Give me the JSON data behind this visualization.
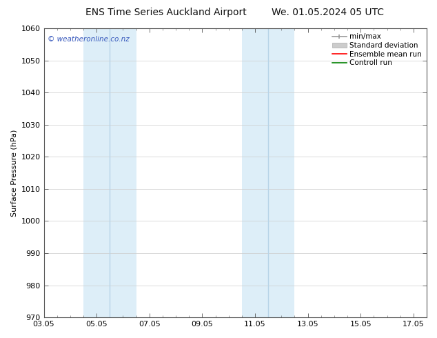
{
  "title_left": "ENS Time Series Auckland Airport",
  "title_right": "We. 01.05.2024 05 UTC",
  "ylabel": "Surface Pressure (hPa)",
  "ylim": [
    970,
    1060
  ],
  "yticks": [
    970,
    980,
    990,
    1000,
    1010,
    1020,
    1030,
    1040,
    1050,
    1060
  ],
  "xtick_labels": [
    "03.05",
    "05.05",
    "07.05",
    "09.05",
    "11.05",
    "13.05",
    "15.05",
    "17.05"
  ],
  "xtick_positions": [
    0,
    2,
    4,
    6,
    8,
    10,
    12,
    14
  ],
  "xlim": [
    0,
    14
  ],
  "shaded_bands": [
    {
      "xstart": 1.5,
      "xend": 3.5,
      "color": "#ddeef8"
    },
    {
      "xstart": 7.5,
      "xend": 9.5,
      "color": "#ddeef8"
    }
  ],
  "inner_lines": [
    {
      "x": 2.5,
      "color": "#b8d4e8"
    },
    {
      "x": 8.5,
      "color": "#b8d4e8"
    }
  ],
  "watermark_text": "© weatheronline.co.nz",
  "watermark_color": "#3355bb",
  "bg_color": "#ffffff",
  "grid_color": "#cccccc",
  "border_color": "#555555",
  "title_fontsize": 10,
  "axis_label_fontsize": 8,
  "tick_fontsize": 8,
  "legend_fontsize": 7.5
}
